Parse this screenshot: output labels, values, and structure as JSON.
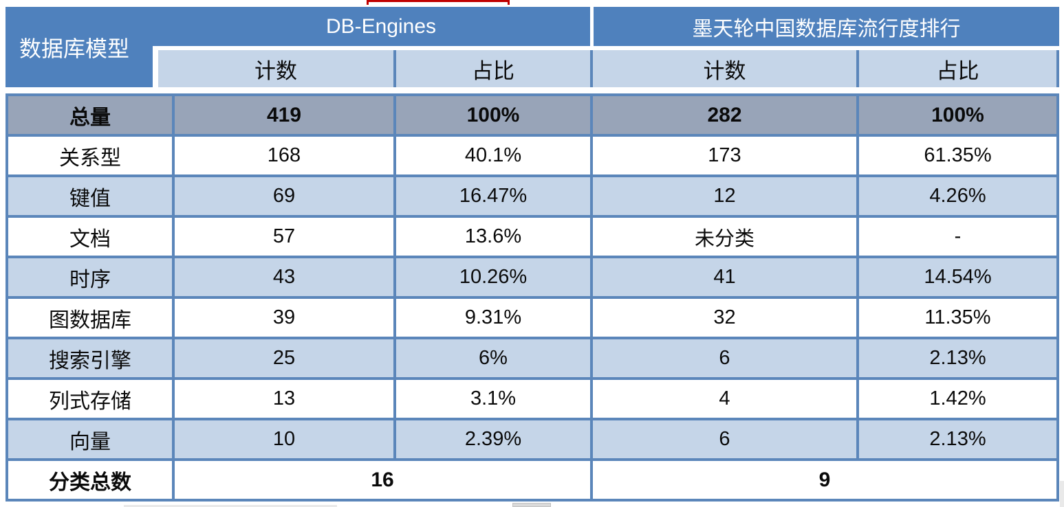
{
  "colors": {
    "header_blue": "#4F81BD",
    "light_blue": "#C5D5E8",
    "total_row_gray": "#98A4B8",
    "grid_border_blue": "#5B86BA",
    "header_text": "#FFFFFF",
    "body_text": "#0A0A0A",
    "red_artifact": "#C00000"
  },
  "table": {
    "corner_header": "数据库模型",
    "group_headers": [
      {
        "label": "DB-Engines"
      },
      {
        "label": "墨天轮中国数据库流行度排行"
      }
    ],
    "sub_headers": [
      "计数",
      "占比",
      "计数",
      "占比"
    ],
    "rows": [
      {
        "label": "总量",
        "values": [
          "419",
          "100%",
          "282",
          "100%"
        ],
        "variant": "total",
        "span": 1
      },
      {
        "label": "关系型",
        "values": [
          "168",
          "40.1%",
          "173",
          "61.35%"
        ],
        "variant": "plain",
        "span": 1
      },
      {
        "label": "键值",
        "values": [
          "69",
          "16.47%",
          "12",
          "4.26%"
        ],
        "variant": "alt",
        "span": 1
      },
      {
        "label": "文档",
        "values": [
          "57",
          "13.6%",
          "未分类",
          "-"
        ],
        "variant": "plain",
        "span": 1
      },
      {
        "label": "时序",
        "values": [
          "43",
          "10.26%",
          "41",
          "14.54%"
        ],
        "variant": "alt",
        "span": 1
      },
      {
        "label": "图数据库",
        "values": [
          "39",
          "9.31%",
          "32",
          "11.35%"
        ],
        "variant": "plain",
        "span": 1
      },
      {
        "label": "搜索引擎",
        "values": [
          "25",
          "6%",
          "6",
          "2.13%"
        ],
        "variant": "alt",
        "span": 1
      },
      {
        "label": "列式存储",
        "values": [
          "13",
          "3.1%",
          "4",
          "1.42%"
        ],
        "variant": "plain",
        "span": 1
      },
      {
        "label": "向量",
        "values": [
          "10",
          "2.39%",
          "6",
          "2.13%"
        ],
        "variant": "alt",
        "span": 1
      },
      {
        "label": "分类总数",
        "values": [
          "16",
          "9"
        ],
        "variant": "footer",
        "span": 2
      }
    ]
  },
  "chart_data": {
    "type": "table",
    "row_header": "数据库模型",
    "column_groups": [
      {
        "label": "DB-Engines",
        "columns": [
          "计数",
          "占比"
        ]
      },
      {
        "label": "墨天轮中国数据库流行度排行",
        "columns": [
          "计数",
          "占比"
        ]
      }
    ],
    "rows": [
      [
        "总量",
        "419",
        "100%",
        "282",
        "100%"
      ],
      [
        "关系型",
        "168",
        "40.1%",
        "173",
        "61.35%"
      ],
      [
        "键值",
        "69",
        "16.47%",
        "12",
        "4.26%"
      ],
      [
        "文档",
        "57",
        "13.6%",
        "未分类",
        "-"
      ],
      [
        "时序",
        "43",
        "10.26%",
        "41",
        "14.54%"
      ],
      [
        "图数据库",
        "39",
        "9.31%",
        "32",
        "11.35%"
      ],
      [
        "搜索引擎",
        "25",
        "6%",
        "6",
        "2.13%"
      ],
      [
        "列式存储",
        "13",
        "3.1%",
        "4",
        "1.42%"
      ],
      [
        "向量",
        "10",
        "2.39%",
        "6",
        "2.13%"
      ],
      [
        "分类总数",
        "16",
        null,
        "9",
        null
      ]
    ],
    "notes": "分类总数 row: value 16 merged across DB-Engines 计数/占比 columns, value 9 merged across 墨天轮 计数/占比 columns. 总量 row rendered bold on gray-blue background."
  },
  "artifacts": {
    "red_underline_top": "cropped red underline fragment above table",
    "scrollbar_fragments": "light gray scrollbar fragments at bottom edge"
  }
}
